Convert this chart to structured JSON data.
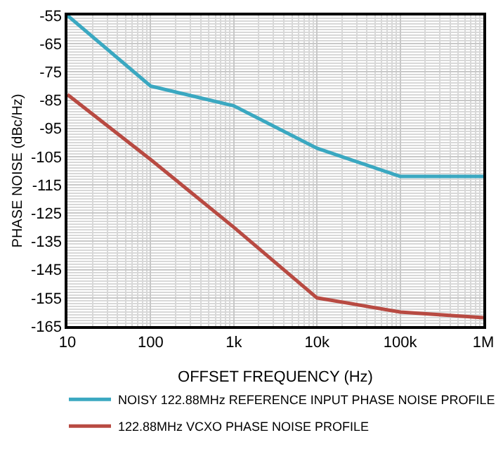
{
  "chart_data": {
    "type": "line",
    "xlabel": "OFFSET FREQUENCY (Hz)",
    "ylabel": "PHASE NOISE (dBc/Hz)",
    "x": [
      10,
      100,
      1000,
      10000,
      100000,
      1000000
    ],
    "series": [
      {
        "name": "NOISY 122.88MHz REFERENCE INPUT PHASE NOISE PROFILE",
        "color": "#3aa8c1",
        "values": [
          -55,
          -80,
          -87,
          -102,
          -112,
          -112
        ]
      },
      {
        "name": "122.88MHz VCXO PHASE NOISE PROFILE",
        "color": "#b84a42",
        "values": [
          -83,
          -106,
          -130,
          -155,
          -160,
          -162
        ]
      }
    ],
    "log": "x",
    "xlim": [
      10,
      1000000
    ],
    "xticks": [
      10,
      100,
      {
        "value": 1000,
        "label": "1k"
      },
      {
        "value": 10000,
        "label": "10k"
      },
      {
        "value": 100000,
        "label": "100k"
      },
      {
        "value": 1000000,
        "label": "1M"
      }
    ],
    "ylim": [
      -165,
      -55
    ],
    "yticks": [
      -55,
      -65,
      -75,
      -85,
      -95,
      -105,
      -115,
      -125,
      -135,
      -145,
      -155,
      -165
    ],
    "grid": true,
    "legend": "bottom",
    "marker": "none",
    "line_style": "solid"
  }
}
